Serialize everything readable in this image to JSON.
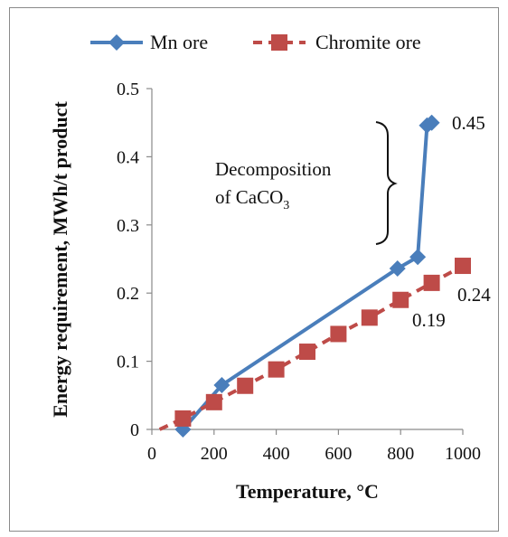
{
  "chart_data": {
    "type": "line",
    "title": "",
    "xlabel": "Temperature, °C",
    "ylabel": "Energy requirement,  MWh/t  product",
    "xlim": [
      0,
      1000
    ],
    "ylim": [
      0,
      0.5
    ],
    "xticks": [
      0,
      200,
      400,
      600,
      800,
      1000
    ],
    "yticks": [
      0,
      0.1,
      0.2,
      0.3,
      0.4,
      0.5
    ],
    "xtick_labels": [
      "0",
      "200",
      "400",
      "600",
      "800",
      "1000"
    ],
    "ytick_labels": [
      "0",
      "0.1",
      "0.2",
      "0.3",
      "0.4",
      "0.5"
    ],
    "grid": false,
    "legend_position": "top",
    "series": [
      {
        "name": "Mn ore",
        "color": "#4a7ebb",
        "marker": "diamond",
        "x": [
          100,
          225,
          790,
          855,
          885,
          900
        ],
        "y": [
          0.0,
          0.065,
          0.236,
          0.253,
          0.446,
          0.45
        ]
      },
      {
        "name": "Chromite ore",
        "color": "#be4b48",
        "marker": "square",
        "dashed": true,
        "x": [
          25,
          100,
          200,
          300,
          400,
          500,
          600,
          700,
          800,
          900,
          1000
        ],
        "y": [
          0.0,
          0.016,
          0.04,
          0.064,
          0.088,
          0.114,
          0.14,
          0.164,
          0.19,
          0.215,
          0.24
        ]
      }
    ],
    "annotations": {
      "mn_end": "0.45",
      "chromite_end": "0.24",
      "chromite_mid": "0.19",
      "decomposition_line1": "Decomposition",
      "decomposition_line2_prefix": "of  CaCO",
      "decomposition_subscript": "3"
    }
  }
}
